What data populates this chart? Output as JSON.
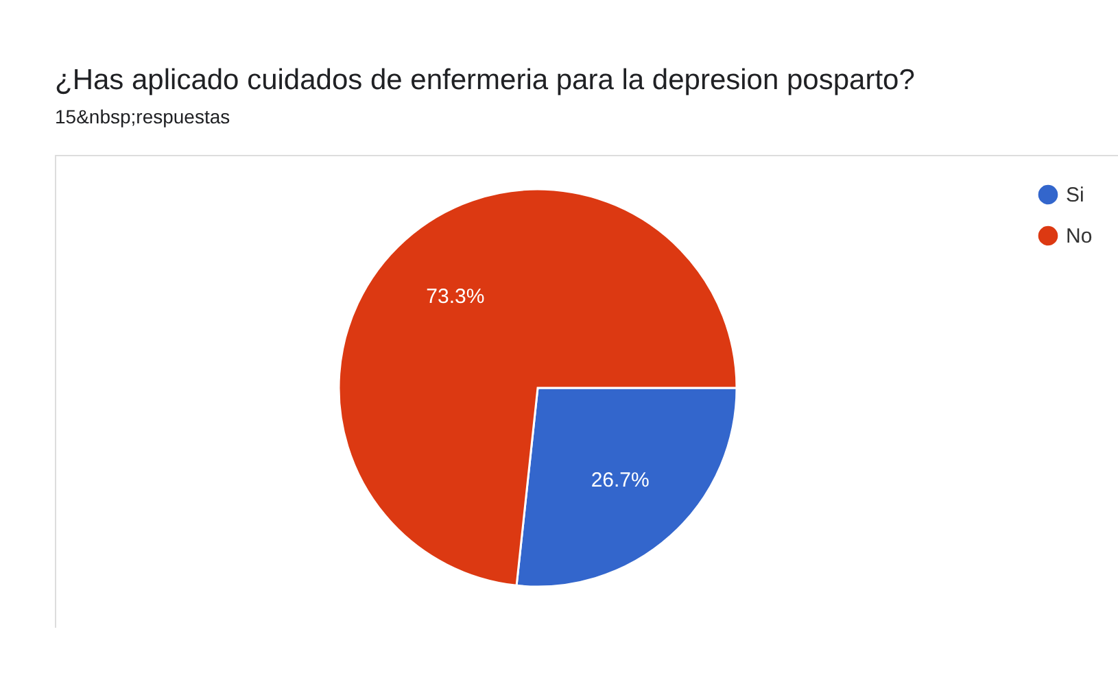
{
  "chart_data": {
    "type": "pie",
    "title": "¿Has aplicado cuidados de enfermeria para la depresion posparto?",
    "subtitle": "15&nbsp;respuestas",
    "categories": [
      "Si",
      "No"
    ],
    "values": [
      26.7,
      73.3
    ],
    "colors": [
      "#3366cc",
      "#dc3912"
    ],
    "value_labels": [
      "26.7%",
      "73.3%"
    ],
    "legend": "top right"
  }
}
